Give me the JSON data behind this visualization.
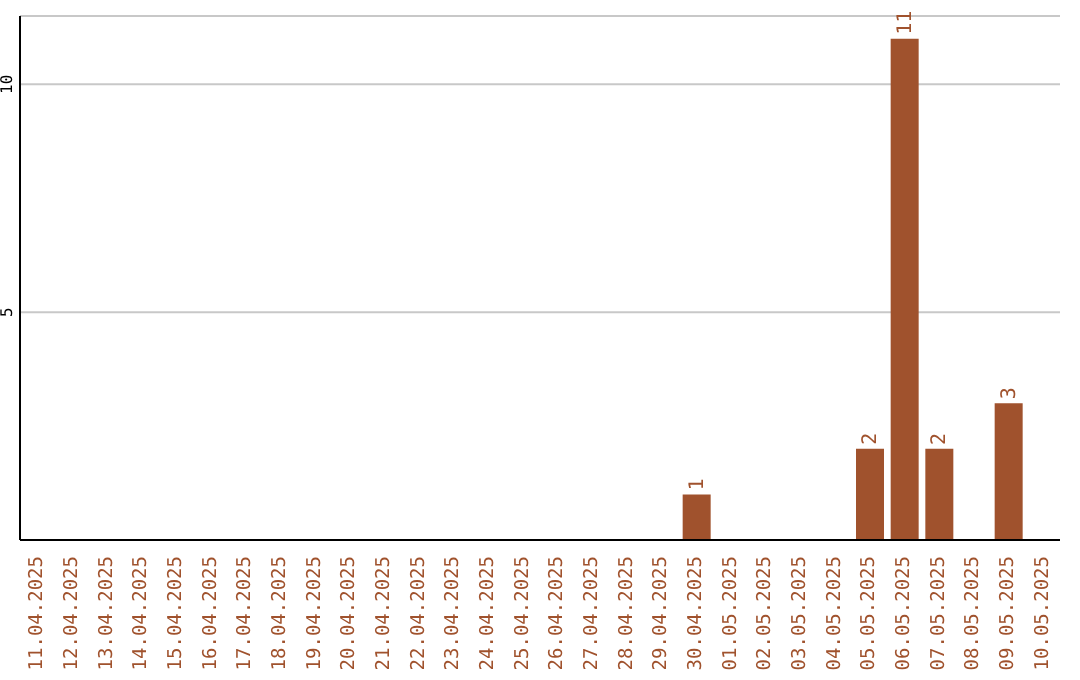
{
  "chart_data": {
    "type": "bar",
    "categories": [
      "11.04.2025",
      "12.04.2025",
      "13.04.2025",
      "14.04.2025",
      "15.04.2025",
      "16.04.2025",
      "17.04.2025",
      "18.04.2025",
      "19.04.2025",
      "20.04.2025",
      "21.04.2025",
      "22.04.2025",
      "23.04.2025",
      "24.04.2025",
      "25.04.2025",
      "26.04.2025",
      "27.04.2025",
      "28.04.2025",
      "29.04.2025",
      "30.04.2025",
      "01.05.2025",
      "02.05.2025",
      "03.05.2025",
      "04.05.2025",
      "05.05.2025",
      "06.05.2025",
      "07.05.2025",
      "08.05.2025",
      "09.05.2025",
      "10.05.2025"
    ],
    "values": [
      0,
      0,
      0,
      0,
      0,
      0,
      0,
      0,
      0,
      0,
      0,
      0,
      0,
      0,
      0,
      0,
      0,
      0,
      0,
      1,
      0,
      0,
      0,
      0,
      2,
      11,
      2,
      0,
      3,
      0
    ],
    "value_labels": [
      null,
      null,
      null,
      null,
      null,
      null,
      null,
      null,
      null,
      null,
      null,
      null,
      null,
      null,
      null,
      null,
      null,
      null,
      null,
      "1",
      null,
      null,
      null,
      null,
      "2",
      "11",
      "2",
      null,
      "3",
      null
    ],
    "color": "#a0522d",
    "ylim": [
      0,
      11.5
    ],
    "yticks": [
      5,
      10
    ],
    "grid": "y",
    "legend": false
  }
}
